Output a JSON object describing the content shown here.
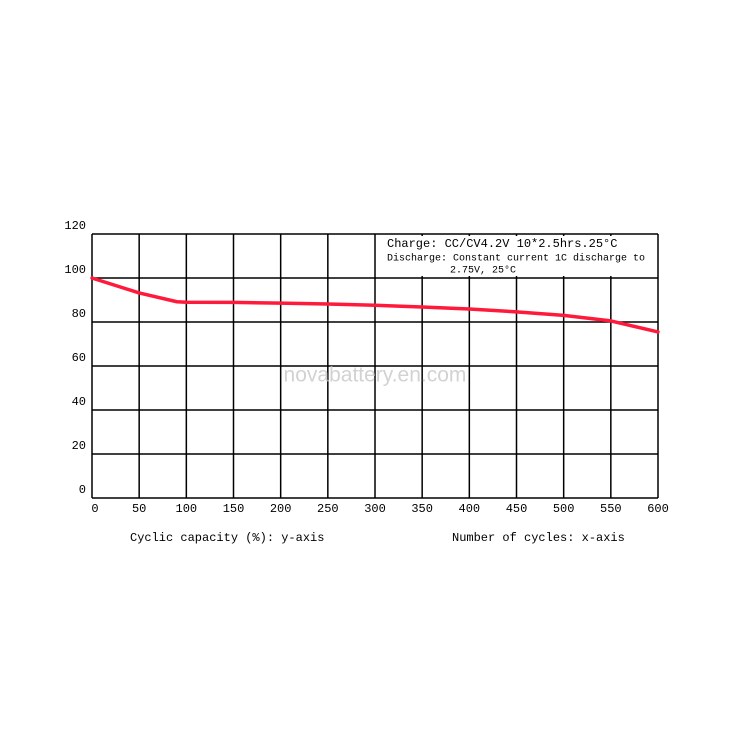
{
  "chart_data": {
    "type": "line",
    "x": [
      0,
      50,
      90,
      100,
      150,
      200,
      250,
      300,
      350,
      400,
      450,
      500,
      550,
      600
    ],
    "series": [
      {
        "name": null,
        "color": "#ff1a3c",
        "values": [
          100,
          93.2,
          89.2,
          89,
          88.9,
          88.6,
          88.2,
          87.6,
          86.8,
          85.9,
          84.6,
          83,
          80.5,
          75.5
        ]
      }
    ],
    "xlim": [
      0,
      600
    ],
    "xticks": [
      0,
      50,
      100,
      150,
      200,
      250,
      300,
      350,
      400,
      450,
      500,
      550,
      600
    ],
    "ylim": [
      0,
      120
    ],
    "yticks": [
      0,
      20,
      40,
      60,
      80,
      100,
      120
    ],
    "grid": true,
    "annotations": [
      "Charge: CC/CV4.2V 10*2.5hrs.25°C",
      "Discharge: Constant current 1C discharge to",
      "2.75V, 25°C"
    ],
    "watermark": "novabattery.en.com",
    "ylabel": "Cyclic capacity (%): y-axis",
    "xlabel": "Number of cycles: x-axis"
  }
}
